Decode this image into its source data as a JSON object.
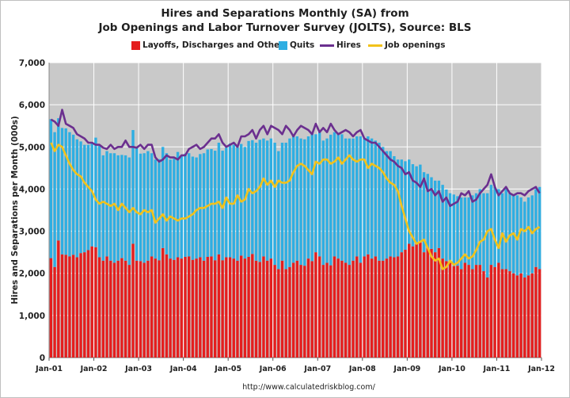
{
  "title_line1": "Hires and Separations Monthly (SA) from",
  "title_line2": "Job Openings and Labor Turnover Survey (JOLTS), Source: BLS",
  "legend": {
    "layoffs": "Layoffs, Discharges and Other",
    "quits": "Quits",
    "hires": "Hires",
    "openings": "Job openings"
  },
  "footer": "http://www.calculatedriskblog.com/",
  "colors": {
    "layoffs": "#e41e1e",
    "quits": "#2eaee2",
    "hires": "#6b2f8f",
    "openings": "#f2c21a",
    "plot_bg": "#c9c9c9",
    "grid": "#ffffff"
  },
  "chart_data": {
    "type": "bar",
    "stacked": true,
    "ylabel": "Hires and Separations per Month (000s)",
    "ylim": [
      0,
      7000
    ],
    "y_ticks": [
      "0",
      "1,000",
      "2,000",
      "3,000",
      "4,000",
      "5,000",
      "6,000",
      "7,000"
    ],
    "x_ticks": [
      "Jan-01",
      "Jan-02",
      "Jan-03",
      "Jan-04",
      "Jan-05",
      "Jan-06",
      "Jan-07",
      "Jan-08",
      "Jan-09",
      "Jan-10",
      "Jan-11",
      "Jan-12"
    ],
    "x_start": "Dec-00",
    "grid": true,
    "legend_position": "top",
    "series": [
      {
        "name": "Layoffs, Discharges and Other",
        "values": [
          2360,
          2150,
          2780,
          2450,
          2440,
          2400,
          2440,
          2380,
          2480,
          2500,
          2550,
          2640,
          2620,
          2380,
          2300,
          2400,
          2300,
          2250,
          2300,
          2360,
          2300,
          2200,
          2700,
          2300,
          2290,
          2250,
          2300,
          2400,
          2350,
          2310,
          2600,
          2450,
          2350,
          2320,
          2380,
          2350,
          2390,
          2400,
          2320,
          2350,
          2380,
          2300,
          2390,
          2400,
          2310,
          2450,
          2310,
          2380,
          2380,
          2350,
          2300,
          2420,
          2350,
          2390,
          2460,
          2300,
          2270,
          2400,
          2300,
          2350,
          2200,
          2100,
          2300,
          2100,
          2150,
          2250,
          2300,
          2200,
          2180,
          2350,
          2290,
          2500,
          2400,
          2200,
          2250,
          2190,
          2400,
          2350,
          2300,
          2250,
          2200,
          2300,
          2400,
          2250,
          2400,
          2450,
          2350,
          2400,
          2300,
          2300,
          2350,
          2400,
          2380,
          2400,
          2500,
          2560,
          2700,
          2640,
          2690,
          2730,
          2500,
          2610,
          2580,
          2500,
          2600,
          2350,
          2290,
          2250,
          2170,
          2180,
          2100,
          2250,
          2200,
          2100,
          2200,
          2200,
          2050,
          1900,
          2200,
          2150,
          2250,
          2100,
          2100,
          2050,
          2000,
          1950,
          2000,
          1900,
          1950,
          2000,
          2150,
          2100
        ]
      },
      {
        "name": "Quits",
        "values": [
          3300,
          3200,
          2900,
          3000,
          3000,
          2950,
          2850,
          2800,
          2650,
          2550,
          2500,
          2450,
          2600,
          2650,
          2500,
          2500,
          2550,
          2600,
          2500,
          2450,
          2500,
          2550,
          2700,
          2700,
          2550,
          2600,
          2600,
          2450,
          2350,
          2400,
          2400,
          2400,
          2350,
          2400,
          2500,
          2450,
          2450,
          2450,
          2450,
          2400,
          2450,
          2550,
          2550,
          2550,
          2600,
          2650,
          2600,
          2600,
          2700,
          2700,
          2700,
          2650,
          2650,
          2750,
          2700,
          2800,
          2900,
          2800,
          2850,
          2850,
          2900,
          2800,
          2800,
          3000,
          3050,
          3000,
          2950,
          3000,
          3000,
          2900,
          3050,
          2800,
          2950,
          2950,
          2950,
          3100,
          2950,
          2950,
          3000,
          2950,
          3000,
          2900,
          2850,
          3000,
          2800,
          2800,
          2850,
          2750,
          2800,
          2700,
          2550,
          2500,
          2400,
          2300,
          2200,
          2100,
          2000,
          1950,
          1850,
          1850,
          1900,
          1750,
          1700,
          1700,
          1600,
          1750,
          1700,
          1650,
          1700,
          1650,
          1700,
          1550,
          1600,
          1750,
          1700,
          1800,
          1850,
          2000,
          1900,
          1900,
          1750,
          1800,
          1900,
          1850,
          1850,
          1900,
          1800,
          1800,
          1850,
          1850,
          1850,
          1950
        ]
      },
      {
        "name": "Hires",
        "type": "line",
        "values": [
          5650,
          5600,
          5500,
          5880,
          5550,
          5500,
          5450,
          5300,
          5250,
          5200,
          5100,
          5100,
          5050,
          5050,
          4980,
          4950,
          5050,
          4950,
          5000,
          5000,
          5150,
          5000,
          5000,
          4980,
          5050,
          4950,
          5050,
          5050,
          4750,
          4650,
          4700,
          4800,
          4750,
          4750,
          4700,
          4800,
          4800,
          4950,
          5000,
          5050,
          4950,
          5000,
          5100,
          5200,
          5200,
          5300,
          5100,
          5000,
          5050,
          5100,
          5000,
          5250,
          5250,
          5300,
          5400,
          5200,
          5400,
          5500,
          5300,
          5500,
          5450,
          5400,
          5300,
          5500,
          5400,
          5250,
          5400,
          5500,
          5450,
          5400,
          5300,
          5550,
          5350,
          5450,
          5350,
          5550,
          5400,
          5300,
          5350,
          5400,
          5350,
          5250,
          5350,
          5400,
          5200,
          5150,
          5100,
          5100,
          5000,
          4900,
          4800,
          4700,
          4650,
          4550,
          4500,
          4350,
          4400,
          4200,
          4150,
          4050,
          4250,
          3950,
          4000,
          3850,
          3950,
          3700,
          3800,
          3600,
          3650,
          3700,
          3900,
          3850,
          3950,
          3700,
          3750,
          3900,
          4000,
          4100,
          4350,
          4050,
          3850,
          3950,
          4050,
          3900,
          3850,
          3900,
          3900,
          3850,
          3950,
          4000,
          4050,
          3900
        ]
      },
      {
        "name": "Job openings",
        "type": "line",
        "values": [
          5100,
          4900,
          5050,
          5000,
          4800,
          4600,
          4450,
          4350,
          4300,
          4150,
          4050,
          3950,
          3750,
          3650,
          3700,
          3650,
          3600,
          3650,
          3500,
          3650,
          3550,
          3450,
          3550,
          3450,
          3400,
          3500,
          3450,
          3500,
          3200,
          3300,
          3400,
          3250,
          3350,
          3300,
          3250,
          3300,
          3300,
          3350,
          3400,
          3500,
          3550,
          3550,
          3600,
          3650,
          3650,
          3700,
          3550,
          3800,
          3650,
          3650,
          3850,
          3700,
          3750,
          4000,
          3900,
          3950,
          4050,
          4250,
          4100,
          4200,
          4050,
          4200,
          4150,
          4150,
          4200,
          4400,
          4550,
          4600,
          4550,
          4450,
          4350,
          4650,
          4600,
          4700,
          4700,
          4600,
          4650,
          4750,
          4600,
          4700,
          4800,
          4700,
          4650,
          4700,
          4700,
          4500,
          4600,
          4550,
          4500,
          4400,
          4250,
          4150,
          4100,
          3950,
          3600,
          3300,
          3000,
          2850,
          2700,
          2750,
          2800,
          2600,
          2400,
          2300,
          2350,
          2100,
          2150,
          2300,
          2200,
          2250,
          2350,
          2450,
          2350,
          2400,
          2550,
          2750,
          2800,
          3000,
          3050,
          2800,
          2600,
          2950,
          2750,
          2900,
          2950,
          2800,
          3050,
          3000,
          3100,
          2950,
          3050,
          3100
        ]
      }
    ]
  }
}
